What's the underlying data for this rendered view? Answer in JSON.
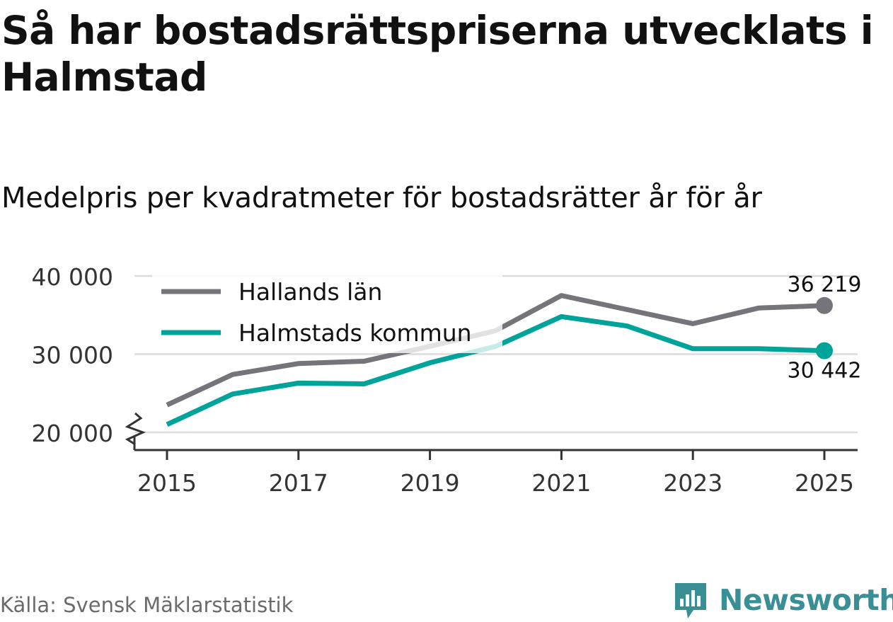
{
  "title": "Så har bostadsrättspriserna utvecklats i Halmstad",
  "subtitle": "Medelpris per kvadratmeter för bostadsrätter år för år",
  "source": "Källa: Svensk Mäklarstatistik",
  "brand": {
    "name": "Newsworthy",
    "icon": "bar-chart-speech-bubble-icon"
  },
  "colors": {
    "hallands": "#76747b",
    "halmstad": "#00a39a",
    "brand": "#3a8f94",
    "text": "#111111",
    "axis": "#333333",
    "grid": "#dcdcdc"
  },
  "chart_data": {
    "type": "line",
    "x": [
      2015,
      2016,
      2017,
      2018,
      2019,
      2020,
      2021,
      2022,
      2023,
      2024,
      2025
    ],
    "x_ticks": [
      "2015",
      "2017",
      "2019",
      "2021",
      "2023",
      "2025"
    ],
    "y_ticks": [
      20000,
      30000,
      40000
    ],
    "y_tick_labels": [
      "20 000",
      "30 000",
      "40 000"
    ],
    "ylim": [
      18000,
      40000
    ],
    "y_axis_break": true,
    "grid": true,
    "legend_position": "top-left",
    "series": [
      {
        "name": "Hallands län",
        "color": "#76747b",
        "values": [
          23500,
          27400,
          28800,
          29100,
          31000,
          33000,
          37500,
          35700,
          33900,
          35900,
          36219
        ],
        "end_label": "36 219",
        "end_label_position": "above"
      },
      {
        "name": "Halmstads kommun",
        "color": "#00a39a",
        "values": [
          21000,
          24900,
          26300,
          26200,
          28900,
          31000,
          34800,
          33600,
          30700,
          30700,
          30442
        ],
        "end_label": "30 442",
        "end_label_position": "below"
      }
    ]
  }
}
